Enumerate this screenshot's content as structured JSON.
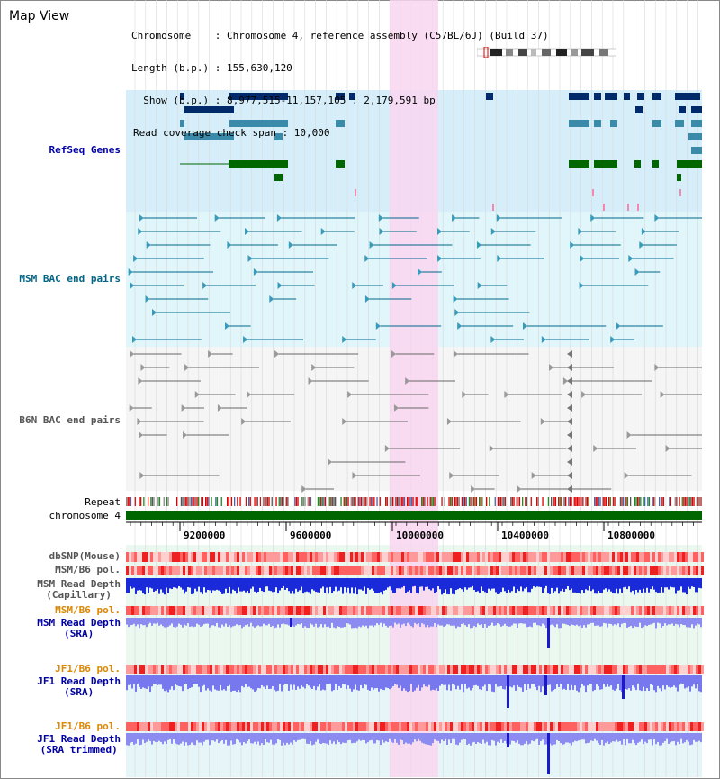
{
  "header": {
    "title": "Map View",
    "info_lines": [
      "Chromosome    : Chromosome 4, reference assembly (C57BL/6J) (Build 37)",
      "Length (b.p.) : 155,630,120",
      "  Show (b.p.) : 8,977,515-11,157,105 : 2,179,591 bp",
      "Read coverage check span : 10,000"
    ]
  },
  "tracks": {
    "refseq": "RefSeq Genes",
    "msm_bac": "MSM BAC end pairs",
    "b6n_bac": "B6N BAC end pairs",
    "repeat": "Repeat",
    "chromosome": "chromosome 4",
    "dbsnp": "dbSNP(Mouse)",
    "msm_b6_pol": "MSM/B6 pol.",
    "msm_depth_cap_1": "MSM Read Depth",
    "msm_depth_cap_2": "(Capillary)",
    "msm_b6_pol_2": "MSM/B6 pol.",
    "msm_depth_sra_1": "MSM Read Depth",
    "msm_depth_sra_2": "(SRA)",
    "jf1_b6_pol": "JF1/B6 pol.",
    "jf1_depth_sra_1": "JF1 Read Depth",
    "jf1_depth_sra_2": "(SRA)",
    "jf1_b6_pol_2": "JF1/B6 pol.",
    "jf1_depth_trim_1": "JF1 Read Depth",
    "jf1_depth_trim_2": "(SRA trimmed)"
  },
  "axis": {
    "ticks": [
      "9200000",
      "9600000",
      "10000000",
      "10400000",
      "10800000"
    ]
  },
  "colors": {
    "refseq_label": "#0000aa",
    "msm_label": "#006688",
    "b6n_label": "#555555",
    "pol_orange": "#dd8800",
    "depth_blue": "#0000aa",
    "chrom_green": "#006600",
    "highlight": "#f9d6f0",
    "refseq_bg": "#d6eefa",
    "msm_bg": "#e0f6fa",
    "depth_bg": "#eaf8f0"
  }
}
